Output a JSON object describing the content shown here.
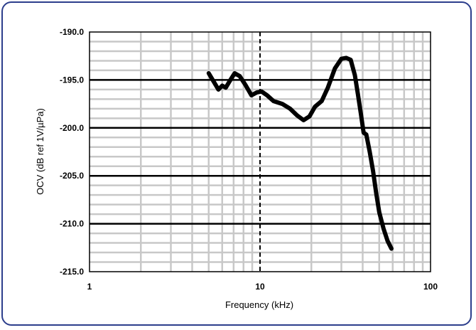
{
  "chart_data": {
    "type": "line",
    "title": "",
    "xlabel": "Frequency (kHz)",
    "ylabel": "OCV (dB ref 1V/µPa)",
    "xscale": "log",
    "xlim": [
      1,
      100
    ],
    "ylim": [
      -215,
      -190
    ],
    "x_ticks": [
      "1",
      "10",
      "100"
    ],
    "y_ticks": [
      "-190.0",
      "-195.0",
      "-200.0",
      "-205.0",
      "-210.0",
      "-215.0"
    ],
    "grid": true,
    "series": [
      {
        "name": "",
        "x": [
          5.0,
          5.4,
          5.7,
          6.0,
          6.3,
          6.7,
          7.1,
          7.6,
          8.2,
          8.9,
          9.6,
          10.2,
          11.0,
          12.0,
          13.5,
          15.0,
          16.5,
          18.0,
          19.5,
          21.0,
          23.0,
          25.0,
          27.5,
          30.0,
          32.0,
          34.0,
          36.0,
          37.5,
          39.0,
          40.5,
          42.0,
          44.0,
          46.0,
          48.0,
          50.0,
          53.0,
          56.0,
          59.0
        ],
        "y": [
          -194.3,
          -195.3,
          -196.0,
          -195.6,
          -195.8,
          -195.0,
          -194.3,
          -194.6,
          -195.5,
          -196.6,
          -196.3,
          -196.2,
          -196.6,
          -197.2,
          -197.5,
          -198.0,
          -198.7,
          -199.2,
          -198.8,
          -197.8,
          -197.2,
          -195.8,
          -193.8,
          -192.8,
          -192.7,
          -192.9,
          -194.5,
          -196.5,
          -198.5,
          -200.5,
          -200.7,
          -202.5,
          -204.5,
          -206.8,
          -208.8,
          -210.5,
          -211.8,
          -212.6
        ]
      }
    ]
  }
}
